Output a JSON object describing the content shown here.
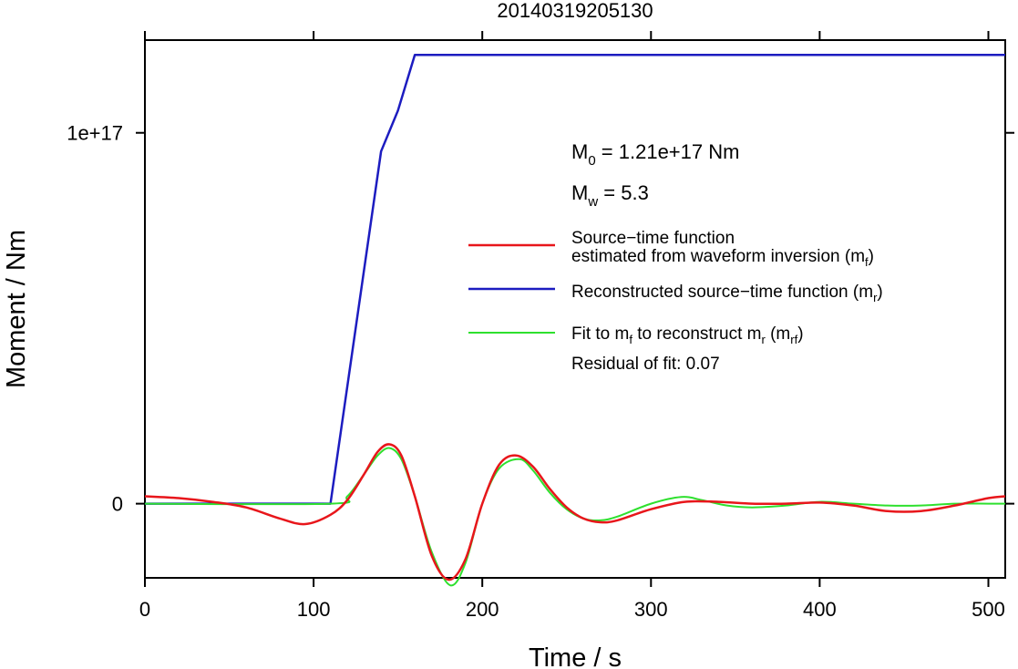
{
  "chart_data": {
    "type": "line",
    "title": "20140319205130",
    "xlabel": "Time / s",
    "ylabel": "Moment / Nm",
    "xlim": [
      0,
      510
    ],
    "ylim": [
      -2e+16,
      1.25e+17
    ],
    "x_ticks": [
      0,
      100,
      200,
      300,
      400,
      500
    ],
    "x_tick_labels": [
      "0",
      "100",
      "200",
      "300",
      "400",
      "500"
    ],
    "y_ticks": [
      0,
      1e+17
    ],
    "y_tick_labels": [
      "0",
      "1e+17"
    ],
    "grid": false,
    "annotations": {
      "m0_prefix": "M",
      "m0_sub": "0",
      "m0_value": " = 1.21e+17 Nm",
      "mw_prefix": "M",
      "mw_sub": "w",
      "mw_value": " = 5.3",
      "residual": "Residual of fit: 0.07"
    },
    "legend": {
      "position": "right",
      "entries": [
        {
          "color": "#e8161b",
          "line1": "Source−time function",
          "line2_pre": "estimated from waveform inversion (m",
          "line2_sub": "f",
          "line2_post": ")"
        },
        {
          "color": "#1c1cc0",
          "line1_pre": "Reconstructed source−time function (m",
          "line1_sub": "r",
          "line1_post": ")"
        },
        {
          "color": "#2ee02e",
          "line1_pre": "Fit to m",
          "line1_sub1": "f",
          "line1_mid": " to reconstruct m",
          "line1_sub2": "r",
          "line1_mid2": " (m",
          "line1_sub3": "rf",
          "line1_post": ")"
        }
      ]
    },
    "series": [
      {
        "color": "#1c1cc0",
        "x": [
          0,
          110,
          140,
          150,
          160,
          510
        ],
        "y": [
          0,
          0,
          9.5e+16,
          1.06e+17,
          1.21e+17,
          1.21e+17
        ]
      },
      {
        "color": "#e8161b",
        "x": [
          0,
          20,
          40,
          60,
          80,
          95,
          110,
          120,
          130,
          138,
          145,
          152,
          160,
          170,
          180,
          190,
          200,
          210,
          220,
          230,
          240,
          250,
          260,
          270,
          280,
          300,
          320,
          340,
          360,
          380,
          400,
          420,
          440,
          460,
          480,
          500,
          510
        ],
        "y": [
          2000000000000000.0,
          1500000000000000.0,
          500000000000000.0,
          -1000000000000000.0,
          -4000000000000000.0,
          -5500000000000000.0,
          -3000000000000000.0,
          1000000000000000.0,
          8000000000000000.0,
          1.4e+16,
          1.6e+16,
          1.3e+16,
          2000000000000000.0,
          -1.4e+16,
          -2.05e+16,
          -1.5e+16,
          0,
          1.05e+16,
          1.3e+16,
          1e+16,
          4000000000000000.0,
          -1000000000000000.0,
          -4000000000000000.0,
          -5000000000000000.0,
          -4500000000000000.0,
          -1500000000000000.0,
          500000000000000.0,
          500000000000000.0,
          0,
          0,
          300000000000000.0,
          -500000000000000.0,
          -2000000000000000.0,
          -2000000000000000.0,
          -500000000000000.0,
          1500000000000000.0,
          2000000000000000.0
        ]
      },
      {
        "color": "#2ee02e",
        "x": [
          0,
          110,
          120,
          130,
          138,
          145,
          152,
          160,
          170,
          181,
          190,
          200,
          210,
          222,
          230,
          240,
          250,
          260,
          270,
          280,
          300,
          318,
          330,
          345,
          360,
          380,
          400,
          420,
          440,
          460,
          480,
          500,
          510
        ],
        "y": [
          0,
          0,
          2000000000000000.0,
          8000000000000000.0,
          1.3e+16,
          1.5e+16,
          1.2e+16,
          2000000000000000.0,
          -1.3e+16,
          -2.2e+16,
          -1.6e+16,
          0,
          9500000000000000.0,
          1.2e+16,
          9000000000000000.0,
          3000000000000000.0,
          -1500000000000000.0,
          -4000000000000000.0,
          -4500000000000000.0,
          -3500000000000000.0,
          0,
          1800000000000000.0,
          1000000000000000.0,
          -500000000000000.0,
          -1000000000000000.0,
          -500000000000000.0,
          500000000000000.0,
          0,
          -500000000000000.0,
          -500000000000000.0,
          0,
          0,
          0
        ]
      }
    ]
  }
}
